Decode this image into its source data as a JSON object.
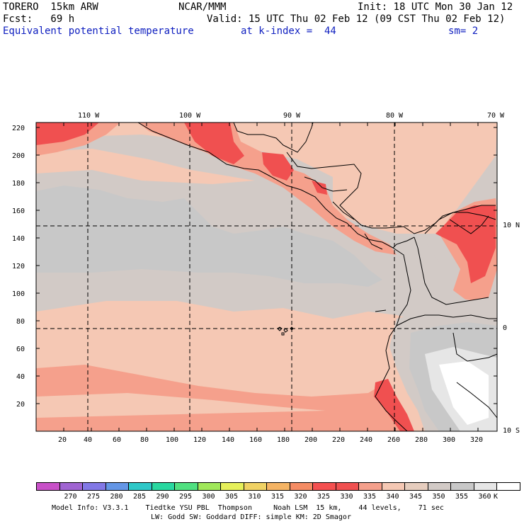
{
  "header": {
    "model": "TORERO  15km ARW",
    "center": "NCAR/MMM",
    "init": "Init: 18 UTC Mon 30 Jan 12",
    "fcst": "Fcst:   69 h",
    "valid": "Valid: 15 UTC Thu 02 Feb 12 (09 CST Thu 02 Feb 12)",
    "field": "Equivalent potential temperature",
    "level": "at k-index =  44",
    "smooth": "sm= 2"
  },
  "axes": {
    "lon_labels": [
      "110 W",
      "100 W",
      "90 W",
      "80 W",
      "70 W"
    ],
    "lat_labels": [
      "10 N",
      "0",
      "10 S"
    ],
    "y_ticks": [
      "20",
      "40",
      "60",
      "80",
      "100",
      "120",
      "140",
      "160",
      "180",
      "200",
      "220"
    ],
    "x_ticks": [
      "20",
      "40",
      "60",
      "80",
      "100",
      "120",
      "140",
      "160",
      "180",
      "200",
      "220",
      "240",
      "260",
      "280",
      "300",
      "320"
    ]
  },
  "colorbar": {
    "colors": [
      "#c850c8",
      "#a064d2",
      "#8278e6",
      "#6496e6",
      "#2ec8c8",
      "#28d8a0",
      "#50e080",
      "#a0e85a",
      "#e6f05a",
      "#f0d264",
      "#f5b464",
      "#f58c64",
      "#f55050",
      "#f05050",
      "#f5a08c",
      "#f5c8b4",
      "#e6cdbe",
      "#d2cac6",
      "#c8c8c8",
      "#e6e6e6",
      "#ffffff"
    ],
    "labels": [
      "270",
      "275",
      "280",
      "285",
      "290",
      "295",
      "300",
      "305",
      "310",
      "315",
      "320",
      "325",
      "330",
      "335",
      "340",
      "345",
      "350",
      "355",
      "360"
    ],
    "unit": "K"
  },
  "footer": {
    "line1": "Model Info: V3.3.1    Tiedtke YSU PBL  Thompson     Noah LSM  15 km,    44 levels,    71 sec",
    "line2": "LW: Godd SW: Goddard DIFF: simple KM: 2D Smagor"
  },
  "map_colors": {
    "peach": "#f5c8b4",
    "salmon": "#f5a08c",
    "red": "#f05050",
    "warm_grey": "#d2cac6",
    "grey": "#c8c8c8",
    "light_grey": "#e6e6e6",
    "white": "#ffffff",
    "coast": "#000000"
  }
}
